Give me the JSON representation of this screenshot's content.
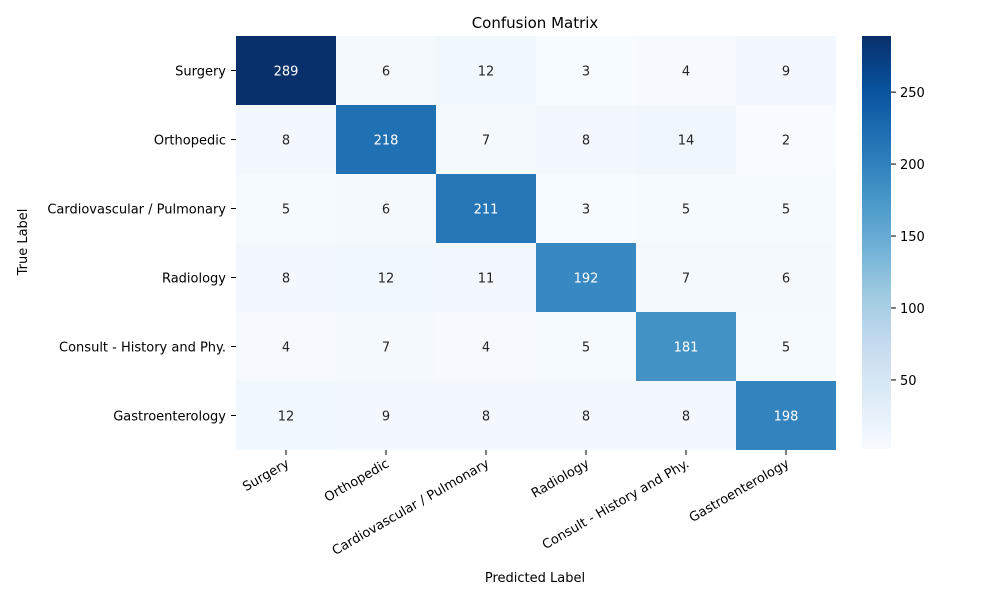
{
  "chart_data": {
    "type": "heatmap",
    "title": "Confusion Matrix",
    "xlabel": "Predicted Label",
    "ylabel": "True Label",
    "x_categories": [
      "Surgery",
      "Orthopedic",
      "Cardiovascular / Pulmonary",
      "Radiology",
      "Consult - History and Phy.",
      "Gastroenterology"
    ],
    "y_categories": [
      "Surgery",
      "Orthopedic",
      "Cardiovascular / Pulmonary",
      "Radiology",
      "Consult - History and Phy.",
      "Gastroenterology"
    ],
    "values": [
      [
        289,
        6,
        12,
        3,
        4,
        9
      ],
      [
        8,
        218,
        7,
        8,
        14,
        2
      ],
      [
        5,
        6,
        211,
        3,
        5,
        5
      ],
      [
        8,
        12,
        11,
        192,
        7,
        6
      ],
      [
        4,
        7,
        4,
        5,
        181,
        5
      ],
      [
        12,
        9,
        8,
        8,
        8,
        198
      ]
    ],
    "colormap": "Blues",
    "value_range": [
      2,
      289
    ],
    "colorbar_ticks": [
      50,
      100,
      150,
      200,
      250
    ]
  }
}
